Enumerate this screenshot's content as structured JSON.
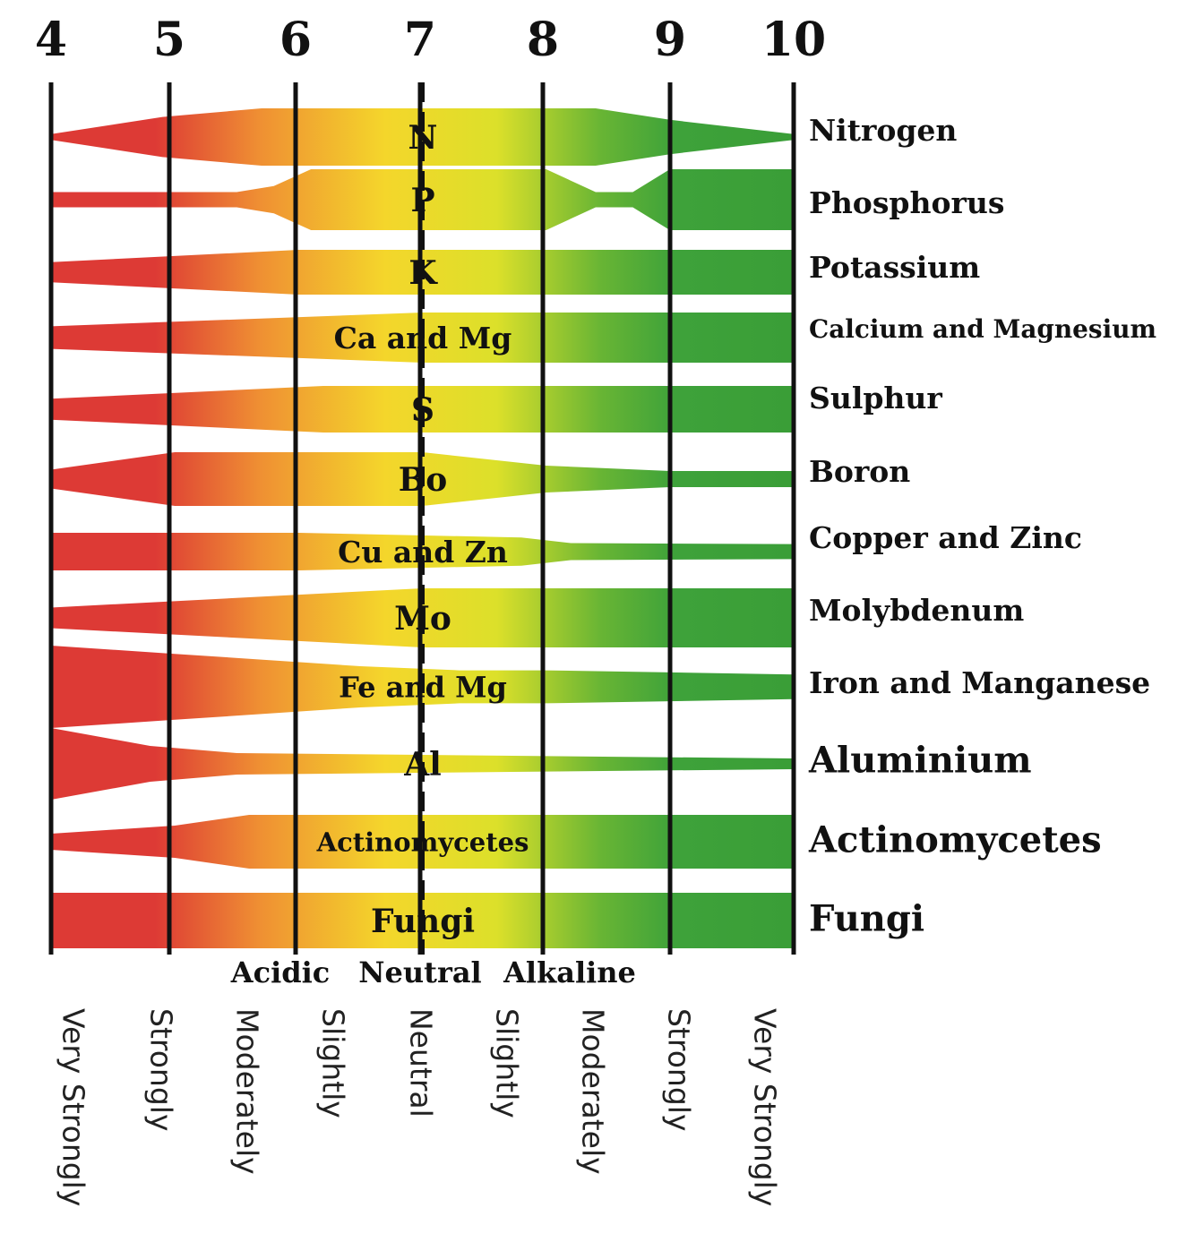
{
  "chart_data": {
    "type": "area",
    "title": "",
    "x_ticks": [
      "4",
      "5",
      "6",
      "7",
      "8",
      "9",
      "10"
    ],
    "xlim": [
      4,
      10
    ],
    "ph_zones": [
      "Acidic",
      "Neutral",
      "Alkaline"
    ],
    "ph_descriptors": [
      "Very Strongly",
      "Strongly",
      "Moderately",
      "Slightly",
      "Neutral",
      "Slightly",
      "Moderately",
      "Strongly",
      "Very Strongly"
    ],
    "gradient_colors": [
      "#dd3a35",
      "#dd3a35",
      "#ef8f33",
      "#f4d62b",
      "#dce02a",
      "#68b534",
      "#3ea23a",
      "#3a9e37"
    ],
    "series": [
      {
        "name": "Nitrogen",
        "label": "N",
        "ph": [
          4,
          4.9,
          5.7,
          8.4,
          9.0,
          10
        ],
        "availability": [
          0.1,
          0.7,
          1.0,
          1.0,
          0.6,
          0.1
        ]
      },
      {
        "name": "Phosphorus",
        "label": "P",
        "ph": [
          4,
          5.5,
          5.8,
          6.1,
          8.0,
          8.4,
          8.7,
          9.0,
          10
        ],
        "availability": [
          0.25,
          0.25,
          0.45,
          1.0,
          1.0,
          0.25,
          0.25,
          1.0,
          1.0
        ]
      },
      {
        "name": "Potassium",
        "label": "K",
        "ph": [
          4,
          6.0,
          10
        ],
        "availability": [
          0.45,
          1.0,
          1.0
        ]
      },
      {
        "name": "Calcium and Magnesium",
        "label": "Ca and Mg",
        "ph": [
          4,
          7.0,
          10
        ],
        "availability": [
          0.45,
          1.0,
          1.0
        ]
      },
      {
        "name": "Sulphur",
        "label": "S",
        "ph": [
          4,
          6.2,
          10
        ],
        "availability": [
          0.45,
          1.0,
          1.0
        ]
      },
      {
        "name": "Boron",
        "label": "Bo",
        "ph": [
          4,
          5.0,
          7.0,
          8.0,
          9.0,
          10
        ],
        "availability": [
          0.35,
          1.0,
          1.0,
          0.5,
          0.3,
          0.3
        ]
      },
      {
        "name": "Copper and Zinc",
        "label": "Cu and Zn",
        "ph": [
          4,
          5.0,
          6.0,
          7.8,
          8.2,
          10
        ],
        "availability": [
          1.0,
          1.0,
          1.0,
          0.75,
          0.45,
          0.4
        ]
      },
      {
        "name": "Molybdenum",
        "label": "Mo",
        "ph": [
          4,
          7.0,
          10
        ],
        "availability": [
          0.35,
          1.0,
          1.0
        ]
      },
      {
        "name": "Iron and Manganese",
        "label": "Fe and Mg",
        "ph": [
          4,
          5.0,
          6.5,
          7.3,
          8.0,
          10
        ],
        "availability": [
          1.0,
          0.8,
          0.5,
          0.4,
          0.4,
          0.3
        ]
      },
      {
        "name": "Aluminium",
        "label": "Al",
        "ph": [
          4,
          4.8,
          5.5,
          7.0,
          10
        ],
        "availability": [
          1.0,
          0.5,
          0.3,
          0.25,
          0.15
        ]
      },
      {
        "name": "Actinomycetes",
        "label": "Actinomycetes",
        "ph": [
          4,
          5.0,
          5.6,
          10
        ],
        "availability": [
          0.3,
          0.6,
          1.0,
          1.0
        ]
      },
      {
        "name": "Fungi",
        "label": "Fungi",
        "ph": [
          4,
          10
        ],
        "availability": [
          1.0,
          1.0
        ]
      }
    ],
    "reference_line": {
      "ph": 7,
      "style": "dashed"
    },
    "grid": true
  }
}
